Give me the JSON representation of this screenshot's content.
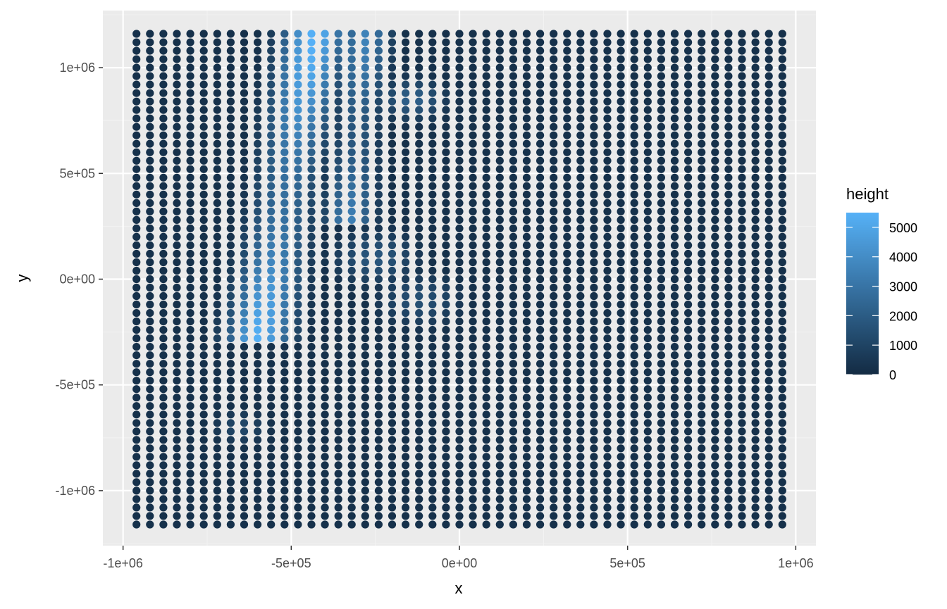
{
  "chart_data": {
    "type": "scatter",
    "description_of_grid": "regular grid of points colored by height",
    "x_label": "x",
    "y_label": "y",
    "xlim": [
      -1060000,
      1060000
    ],
    "ylim": [
      -1260000,
      1270000
    ],
    "x_ticks": [
      -1000000,
      -500000,
      0,
      500000,
      1000000
    ],
    "x_tick_labels": [
      "-1e+06",
      "-5e+05",
      "0e+00",
      "5e+05",
      "1e+06"
    ],
    "y_ticks": [
      -1000000,
      -500000,
      0,
      500000,
      1000000
    ],
    "y_tick_labels": [
      "-1e+06",
      "-5e+05",
      "0e+00",
      "5e+05",
      "1e+06"
    ],
    "grid": true,
    "point_grid": {
      "x_start": -960000,
      "x_step": 40000,
      "x_count": 49,
      "y_start": -1160000,
      "y_step": 40000,
      "y_count": 59
    },
    "legend": {
      "title": "height",
      "position": "right",
      "range": [
        0,
        5500
      ],
      "breaks": [
        0,
        1000,
        2000,
        3000,
        4000,
        5000
      ],
      "break_labels": [
        "0",
        "1000",
        "2000",
        "3000",
        "4000",
        "5000"
      ],
      "low_color": "#132B43",
      "high_color": "#56B1F7"
    },
    "height_features": [
      {
        "type": "ridge",
        "x_center_top": -430000,
        "x_center_bottom": -600000,
        "y_top": 1160000,
        "y_bottom": -300000,
        "width": 90000,
        "peak": 5500
      },
      {
        "type": "ridge",
        "x_center_top": -280000,
        "x_center_bottom": -330000,
        "y_top": 1160000,
        "y_bottom": 250000,
        "width": 70000,
        "peak": 3600
      },
      {
        "type": "blob",
        "x": -140000,
        "y": 850000,
        "radius": 90000,
        "peak": 2200
      },
      {
        "type": "blob",
        "x": -250000,
        "y": 100000,
        "radius": 120000,
        "peak": 1800
      },
      {
        "type": "blob",
        "x": -120000,
        "y": -100000,
        "radius": 120000,
        "peak": 1500
      },
      {
        "type": "blob",
        "x": -650000,
        "y": -700000,
        "radius": 80000,
        "peak": 1200
      }
    ],
    "colors": {
      "panel_background": "#EBEBEB",
      "grid_major": "#FFFFFF",
      "grid_minor": "#F2F2F2"
    }
  }
}
